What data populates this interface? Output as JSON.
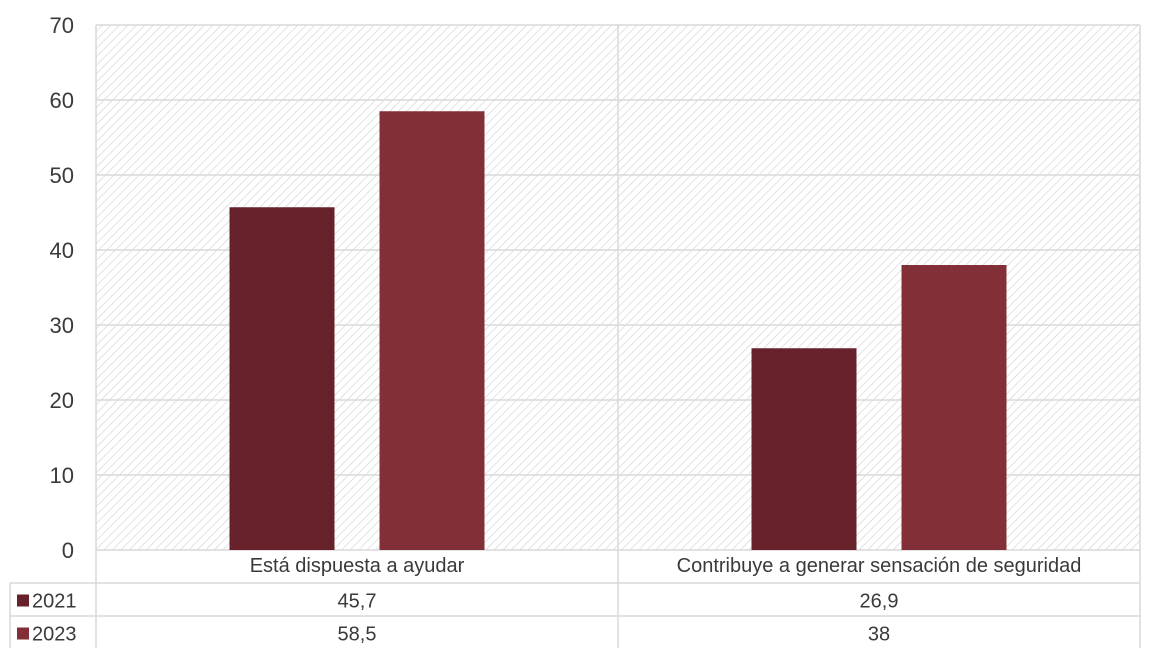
{
  "chart_data": {
    "type": "bar",
    "categories": [
      "Está dispuesta a ayudar",
      "Contribuye a generar sensación de seguridad"
    ],
    "series": [
      {
        "name": "2021",
        "values": [
          45.7,
          26.9
        ],
        "labels": [
          "45,7",
          "26,9"
        ],
        "color": "#67212b"
      },
      {
        "name": "2023",
        "values": [
          58.5,
          38
        ],
        "labels": [
          "58,5",
          "38"
        ],
        "color": "#832f37"
      }
    ],
    "ylim": [
      0,
      70
    ],
    "yticks": [
      "0",
      "10",
      "20",
      "30",
      "40",
      "50",
      "60",
      "70"
    ],
    "grid": true,
    "data_table": true,
    "legend": "data-table"
  },
  "colors": {
    "grid": "#d9d9d9",
    "hatch": "#c8c8c8",
    "text": "#3a3a3a"
  }
}
